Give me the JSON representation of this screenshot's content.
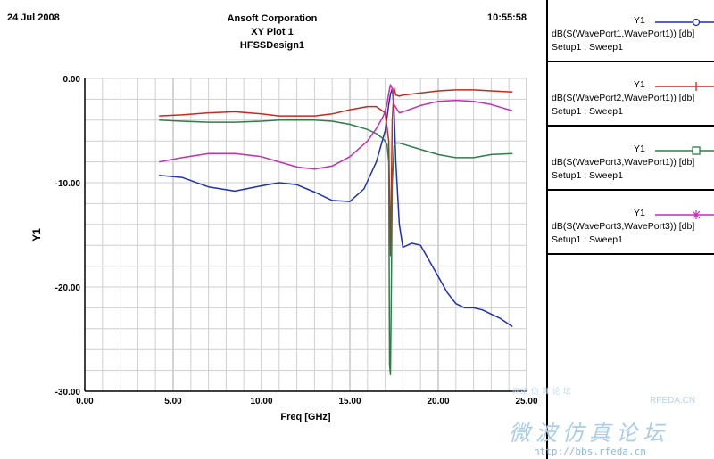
{
  "header": {
    "date": "24 Jul 2008",
    "company": "Ansoft Corporation",
    "plot_name": "XY Plot 1",
    "design": "HFSSDesign1",
    "time": "10:55:58"
  },
  "legend": [
    {
      "y": "Y1",
      "expr": "dB(S(WavePort1,WavePort1)) [db]",
      "setup": "Setup1 : Sweep1",
      "marker": "circle",
      "color": "#1f2fb3"
    },
    {
      "y": "Y1",
      "expr": "dB(S(WavePort2,WavePort1)) [db]",
      "setup": "Setup1 : Sweep1",
      "marker": "plus",
      "color": "#c42a1f"
    },
    {
      "y": "Y1",
      "expr": "dB(S(WavePort3,WavePort1)) [db]",
      "setup": "Setup1 : Sweep1",
      "marker": "square",
      "color": "#2e7d4a"
    },
    {
      "y": "Y1",
      "expr": "dB(S(WavePort3,WavePort3)) [db]",
      "setup": "Setup1 : Sweep1",
      "marker": "star",
      "color": "#c030b0"
    }
  ],
  "chart_data": {
    "type": "line",
    "title": "XY Plot 1",
    "xlabel": "Freq [GHz]",
    "ylabel": "Y1",
    "xlim": [
      0,
      25
    ],
    "ylim": [
      -30,
      0
    ],
    "grid": true,
    "legend_position": "right",
    "xticks": [
      0,
      5,
      10,
      15,
      20,
      25
    ],
    "xtick_labels": [
      "0.00",
      "5.00",
      "10.00",
      "15.00",
      "20.00",
      "25.00"
    ],
    "yticks": [
      0,
      -10,
      -20,
      -30
    ],
    "ytick_labels": [
      "0.00",
      "-10.00",
      "-20.00",
      "-30.00"
    ],
    "series": [
      {
        "name": "dB(S(WavePort1,WavePort1)) [db]",
        "color": "#1f2fb3",
        "x": [
          4.2,
          5.5,
          7,
          8.5,
          10,
          11,
          12,
          13,
          14,
          15,
          15.8,
          16.5,
          17,
          17.2,
          17.3,
          17.4,
          17.5,
          17.6,
          17.8,
          18,
          18.5,
          19,
          19.5,
          20,
          20.5,
          21,
          21.5,
          22,
          22.5,
          23,
          23.5,
          24.2
        ],
        "y": [
          -9.3,
          -9.5,
          -10.4,
          -10.8,
          -10.3,
          -10.0,
          -10.2,
          -10.9,
          -11.7,
          -11.8,
          -10.6,
          -8.0,
          -5.0,
          -2.5,
          -1.5,
          -1.0,
          -3.0,
          -8.0,
          -14.0,
          -16.2,
          -15.8,
          -16.0,
          -17.5,
          -19.0,
          -20.5,
          -21.6,
          -22.0,
          -22.0,
          -22.2,
          -22.6,
          -23.0,
          -23.8
        ]
      },
      {
        "name": "dB(S(WavePort2,WavePort1)) [db]",
        "color": "#c42a1f",
        "x": [
          4.2,
          5.5,
          7,
          8.5,
          10,
          11,
          12,
          13,
          14,
          15,
          16,
          16.5,
          17,
          17.2,
          17.3,
          17.4,
          17.5,
          17.6,
          17.8,
          18,
          19,
          20,
          21,
          22,
          23,
          24.2
        ],
        "y": [
          -3.6,
          -3.5,
          -3.3,
          -3.2,
          -3.4,
          -3.6,
          -3.6,
          -3.6,
          -3.4,
          -3.0,
          -2.7,
          -2.7,
          -3.3,
          -6.0,
          -17.0,
          -4.0,
          -0.9,
          -1.6,
          -1.7,
          -1.6,
          -1.4,
          -1.2,
          -1.1,
          -1.1,
          -1.2,
          -1.3
        ]
      },
      {
        "name": "dB(S(WavePort3,WavePort1)) [db]",
        "color": "#2e7d4a",
        "x": [
          4.2,
          5.5,
          7,
          8.5,
          10,
          11,
          12,
          13,
          14,
          15,
          16,
          16.5,
          16.9,
          17.1,
          17.2,
          17.25,
          17.3,
          17.35,
          17.4,
          17.5,
          17.6,
          17.8,
          18,
          19,
          20,
          21,
          22,
          23,
          24.2
        ],
        "y": [
          -4.0,
          -4.1,
          -4.2,
          -4.2,
          -4.1,
          -4.0,
          -4.0,
          -4.0,
          -4.1,
          -4.4,
          -4.9,
          -5.3,
          -5.8,
          -6.3,
          -8.0,
          -27.5,
          -28.4,
          -20.0,
          -10.0,
          -6.5,
          -6.2,
          -6.2,
          -6.3,
          -6.8,
          -7.3,
          -7.6,
          -7.6,
          -7.3,
          -7.2
        ]
      },
      {
        "name": "dB(S(WavePort3,WavePort3)) [db]",
        "color": "#c030b0",
        "x": [
          4.2,
          5.5,
          7,
          8.5,
          10,
          11,
          12,
          13,
          14,
          15,
          16,
          16.5,
          16.9,
          17.1,
          17.2,
          17.3,
          17.4,
          17.5,
          17.8,
          18,
          19,
          20,
          21,
          22,
          23,
          24.2
        ],
        "y": [
          -8.0,
          -7.6,
          -7.2,
          -7.2,
          -7.5,
          -8.0,
          -8.5,
          -8.7,
          -8.4,
          -7.5,
          -6.0,
          -4.8,
          -3.6,
          -2.5,
          -1.4,
          -0.6,
          -1.0,
          -2.5,
          -3.3,
          -3.2,
          -2.6,
          -2.2,
          -2.1,
          -2.2,
          -2.5,
          -3.1
        ]
      }
    ]
  },
  "watermark": {
    "top_text": "网络 仿 真 论 坛",
    "brand": "RFEDA.CN",
    "cn_text": "微波仿真论坛",
    "url": "http://bbs.rfeda.cn"
  }
}
